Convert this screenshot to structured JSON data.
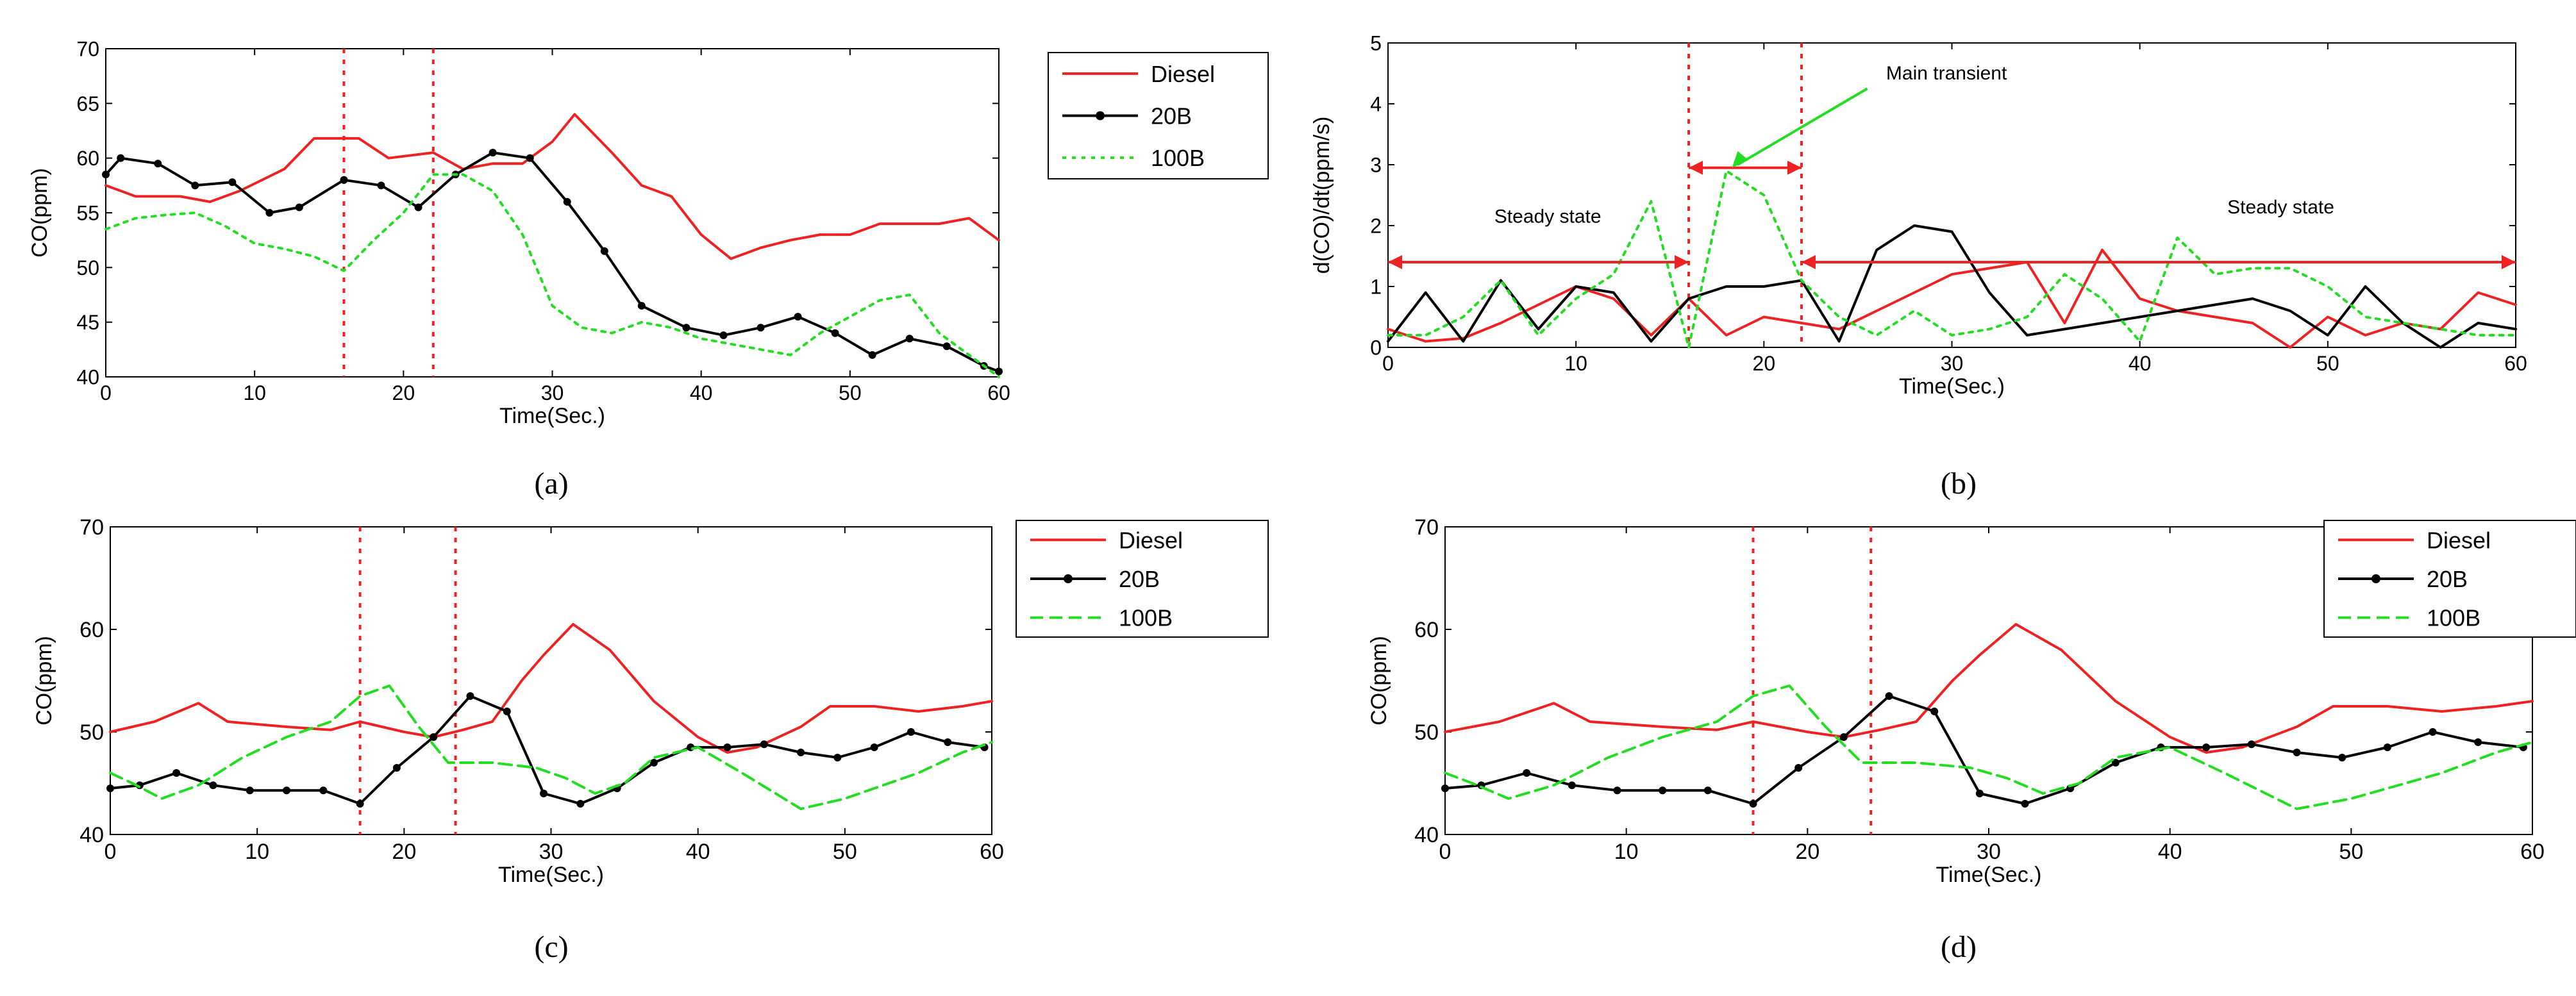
{
  "colors": {
    "diesel": "#ee2222",
    "b20": "#000000",
    "b100": "#22dd22",
    "marker_line": "#ee2222",
    "axis": "#000000",
    "annot_arrow_red": "#ee2222",
    "annot_arrow_green": "#22dd22"
  },
  "chart_data": [
    {
      "id": "a",
      "panel_label": "(a)",
      "type": "line",
      "xlabel": "Time(Sec.)",
      "ylabel": "CO(ppm)",
      "xlim": [
        0,
        60
      ],
      "ylim": [
        40,
        70
      ],
      "xticks": [
        0,
        10,
        20,
        30,
        40,
        50,
        60
      ],
      "yticks": [
        40,
        45,
        50,
        55,
        60,
        65,
        70
      ],
      "vlines": [
        16,
        22
      ],
      "legend": [
        "Diesel",
        "20B",
        "100B"
      ],
      "series": [
        {
          "name": "Diesel",
          "style": "solid",
          "markers": false,
          "x": [
            0,
            2,
            5,
            7,
            9,
            12,
            14,
            17,
            19,
            22,
            24,
            26,
            28,
            30,
            31.5,
            34,
            36,
            38,
            40,
            42,
            44,
            46,
            48,
            50,
            52,
            54,
            56,
            58,
            60
          ],
          "y": [
            57.5,
            56.5,
            56.5,
            56,
            57,
            59,
            61.8,
            61.8,
            60,
            60.5,
            59,
            59.5,
            59.5,
            61.5,
            64,
            60.5,
            57.5,
            56.5,
            53,
            50.8,
            51.8,
            52.5,
            53,
            53,
            54,
            54,
            54,
            54.5,
            52.5
          ]
        },
        {
          "name": "20B",
          "style": "solid",
          "markers": true,
          "x": [
            0,
            1,
            3.5,
            6,
            8.5,
            11,
            13,
            16,
            18.5,
            21,
            23.5,
            26,
            28.5,
            31,
            33.5,
            36,
            39,
            41.5,
            44,
            46.5,
            49,
            51.5,
            54,
            56.5,
            59,
            60
          ],
          "y": [
            58.5,
            60,
            59.5,
            57.5,
            57.8,
            55,
            55.5,
            58,
            57.5,
            55.5,
            58.5,
            60.5,
            60,
            56,
            51.5,
            46.5,
            44.5,
            43.8,
            44.5,
            45.5,
            44,
            42,
            43.5,
            42.8,
            41,
            40.5
          ]
        },
        {
          "name": "100B",
          "style": "dotted",
          "markers": false,
          "x": [
            0,
            2,
            4,
            6,
            8,
            10,
            12,
            14,
            16,
            18,
            20,
            22,
            24,
            26,
            28,
            30,
            32,
            34,
            36,
            38,
            40,
            42,
            44,
            46,
            48,
            50,
            52,
            54,
            56,
            58,
            60
          ],
          "y": [
            53.5,
            54.5,
            54.8,
            55,
            53.8,
            52.2,
            51.7,
            51,
            49.7,
            52.5,
            55,
            58.5,
            58.5,
            57,
            53,
            46.5,
            44.5,
            44,
            45,
            44.5,
            43.5,
            43,
            42.5,
            42,
            44,
            45.5,
            47,
            47.5,
            44,
            42,
            40
          ]
        }
      ]
    },
    {
      "id": "b",
      "panel_label": "(b)",
      "type": "line",
      "xlabel": "Time(Sec.)",
      "ylabel": "d(CO)/dt(ppm/s)",
      "xlim": [
        0,
        60
      ],
      "ylim": [
        0,
        5
      ],
      "xticks": [
        0,
        10,
        20,
        30,
        40,
        50,
        60
      ],
      "yticks": [
        0,
        1,
        2,
        3,
        4,
        5
      ],
      "vlines": [
        16,
        22
      ],
      "annotations": {
        "steady_left": "Steady state",
        "main_transient": "Main transient",
        "steady_right": "Steady state"
      },
      "series": [
        {
          "name": "Diesel",
          "style": "solid",
          "markers": false,
          "x": [
            0,
            2,
            4,
            6,
            8,
            10,
            12,
            14,
            16,
            18,
            20,
            22,
            24,
            26,
            28,
            30,
            32,
            34,
            36,
            38,
            40,
            42,
            44,
            46,
            48,
            50,
            52,
            54,
            56,
            58,
            60
          ],
          "y": [
            0.3,
            0.1,
            0.15,
            0.4,
            0.7,
            1.0,
            0.8,
            0.2,
            0.8,
            0.2,
            0.5,
            0.4,
            0.3,
            0.6,
            0.9,
            1.2,
            1.3,
            1.4,
            0.4,
            1.6,
            0.8,
            0.6,
            0.5,
            0.4,
            0.0,
            0.5,
            0.2,
            0.4,
            0.3,
            0.9,
            0.7
          ]
        },
        {
          "name": "20B",
          "style": "solid",
          "markers": false,
          "x": [
            0,
            2,
            4,
            6,
            8,
            10,
            12,
            14,
            16,
            18,
            20,
            22,
            24,
            26,
            28,
            30,
            32,
            34,
            36,
            38,
            40,
            42,
            44,
            46,
            48,
            50,
            52,
            54,
            56,
            58,
            60
          ],
          "y": [
            0.1,
            0.9,
            0.1,
            1.1,
            0.3,
            1.0,
            0.9,
            0.1,
            0.8,
            1.0,
            1.0,
            1.1,
            0.1,
            1.6,
            2.0,
            1.9,
            0.9,
            0.2,
            0.3,
            0.4,
            0.5,
            0.6,
            0.7,
            0.8,
            0.6,
            0.2,
            1.0,
            0.4,
            0.0,
            0.4,
            0.3
          ]
        },
        {
          "name": "100B",
          "style": "dotted",
          "markers": false,
          "x": [
            0,
            2,
            4,
            6,
            8,
            10,
            12,
            14,
            16,
            18,
            20,
            22,
            24,
            26,
            28,
            30,
            32,
            34,
            36,
            38,
            40,
            42,
            44,
            46,
            48,
            50,
            52,
            54,
            56,
            58,
            60
          ],
          "y": [
            0.2,
            0.2,
            0.5,
            1.1,
            0.2,
            0.8,
            1.2,
            2.4,
            0.0,
            2.9,
            2.5,
            1.1,
            0.5,
            0.2,
            0.6,
            0.2,
            0.3,
            0.5,
            1.2,
            0.8,
            0.1,
            1.8,
            1.2,
            1.3,
            1.3,
            1.0,
            0.5,
            0.4,
            0.3,
            0.2,
            0.2
          ]
        }
      ]
    },
    {
      "id": "c",
      "panel_label": "(c)",
      "type": "line",
      "xlabel": "Time(Sec.)",
      "ylabel": "CO(ppm)",
      "xlim": [
        0,
        60
      ],
      "ylim": [
        40,
        70
      ],
      "xticks": [
        0,
        10,
        20,
        30,
        40,
        50,
        60
      ],
      "yticks": [
        40,
        50,
        60,
        70
      ],
      "vlines": [
        17,
        23.5
      ],
      "legend": [
        "Diesel",
        "20B",
        "100B"
      ],
      "series": [
        {
          "name": "Diesel",
          "style": "solid",
          "markers": false,
          "x": [
            0,
            3,
            6,
            8,
            12,
            15,
            17,
            20,
            22,
            24,
            26,
            28,
            29.5,
            31.5,
            34,
            37,
            40,
            42,
            44,
            47,
            49,
            52,
            55,
            58,
            60
          ],
          "y": [
            50,
            51,
            52.8,
            51,
            50.5,
            50.2,
            51,
            50,
            49.5,
            50.2,
            51,
            55,
            57.5,
            60.5,
            58,
            53,
            49.5,
            48,
            48.5,
            50.5,
            52.5,
            52.5,
            52,
            52.5,
            53
          ]
        },
        {
          "name": "20B",
          "style": "solid",
          "markers": true,
          "x": [
            0,
            2,
            4.5,
            7,
            9.5,
            12,
            14.5,
            17,
            19.5,
            22,
            24.5,
            27,
            29.5,
            32,
            34.5,
            37,
            39.5,
            42,
            44.5,
            47,
            49.5,
            52,
            54.5,
            57,
            59.5
          ],
          "y": [
            44.5,
            44.8,
            46,
            44.8,
            44.3,
            44.3,
            44.3,
            43,
            46.5,
            49.5,
            53.5,
            52,
            44,
            43,
            44.5,
            47,
            48.5,
            48.5,
            48.8,
            48,
            47.5,
            48.5,
            50,
            49,
            48.5
          ]
        },
        {
          "name": "100B",
          "style": "dashed",
          "markers": false,
          "x": [
            0,
            1.5,
            3.5,
            6,
            9,
            12,
            15,
            17,
            19,
            21,
            23,
            26,
            29,
            31,
            33,
            35,
            37,
            40,
            43,
            47,
            50,
            52,
            55,
            58,
            60
          ],
          "y": [
            46,
            45,
            43.5,
            44.8,
            47.5,
            49.5,
            51,
            53.5,
            54.5,
            50.5,
            47,
            47,
            46.5,
            45.5,
            44,
            45,
            47.5,
            48.5,
            46,
            42.5,
            43.5,
            44.5,
            46,
            48,
            49
          ]
        }
      ]
    },
    {
      "id": "d",
      "panel_label": "(d)",
      "type": "line",
      "xlabel": "Time(Sec.)",
      "ylabel": "CO(ppm)",
      "xlim": [
        0,
        60
      ],
      "ylim": [
        40,
        70
      ],
      "xticks": [
        0,
        10,
        20,
        30,
        40,
        50,
        60
      ],
      "yticks": [
        40,
        50,
        60,
        70
      ],
      "vlines": [
        17,
        23.5
      ],
      "legend": [
        "Diesel",
        "20B",
        "100B"
      ],
      "series": [
        {
          "name": "Diesel",
          "style": "solid",
          "markers": false,
          "x": [
            0,
            3,
            6,
            8,
            12,
            15,
            17,
            20,
            22,
            24,
            26,
            28,
            29.5,
            31.5,
            34,
            37,
            40,
            42,
            44,
            47,
            49,
            52,
            55,
            58,
            60
          ],
          "y": [
            50,
            51,
            52.8,
            51,
            50.5,
            50.2,
            51,
            50,
            49.5,
            50.2,
            51,
            55,
            57.5,
            60.5,
            58,
            53,
            49.5,
            48,
            48.5,
            50.5,
            52.5,
            52.5,
            52,
            52.5,
            53
          ]
        },
        {
          "name": "20B",
          "style": "solid",
          "markers": true,
          "x": [
            0,
            2,
            4.5,
            7,
            9.5,
            12,
            14.5,
            17,
            19.5,
            22,
            24.5,
            27,
            29.5,
            32,
            34.5,
            37,
            39.5,
            42,
            44.5,
            47,
            49.5,
            52,
            54.5,
            57,
            59.5
          ],
          "y": [
            44.5,
            44.8,
            46,
            44.8,
            44.3,
            44.3,
            44.3,
            43,
            46.5,
            49.5,
            53.5,
            52,
            44,
            43,
            44.5,
            47,
            48.5,
            48.5,
            48.8,
            48,
            47.5,
            48.5,
            50,
            49,
            48.5
          ]
        },
        {
          "name": "100B",
          "style": "dashed",
          "markers": false,
          "x": [
            0,
            1.5,
            3.5,
            6,
            9,
            12,
            15,
            17,
            19,
            21,
            23,
            26,
            29,
            31,
            33,
            35,
            37,
            40,
            43,
            47,
            50,
            52,
            55,
            58,
            60
          ],
          "y": [
            46,
            45,
            43.5,
            44.8,
            47.5,
            49.5,
            51,
            53.5,
            54.5,
            50.5,
            47,
            47,
            46.5,
            45.5,
            44,
            45,
            47.5,
            48.5,
            46,
            42.5,
            43.5,
            44.5,
            46,
            48,
            49
          ]
        }
      ]
    }
  ]
}
